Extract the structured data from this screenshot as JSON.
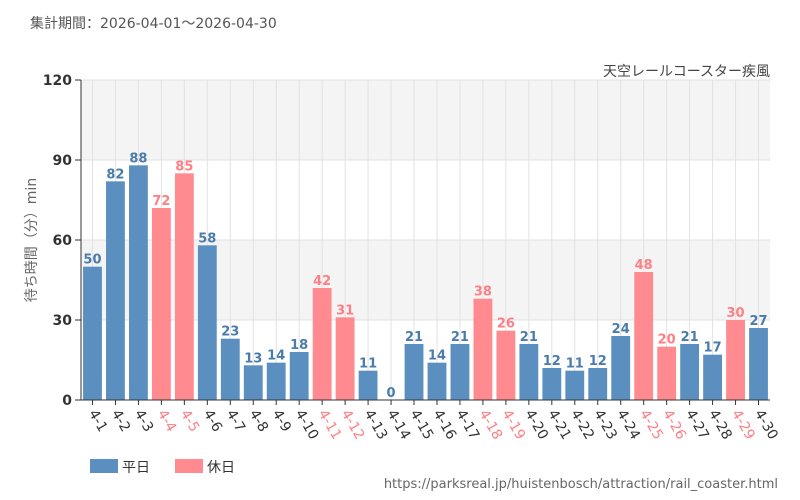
{
  "period_title": "集計期間：2026-04-01～2026-04-30",
  "source_url": "https://parksreal.jp/huistenbosch/attraction/rail_coaster.html",
  "colors": {
    "weekday": "#5b8fbf",
    "holiday": "#ff8a8f",
    "weekday_label": "#4a7cab",
    "holiday_label": "#ff7f86",
    "band": "#f4f4f4",
    "grid": "#e2e2e2",
    "axis": "#333333"
  },
  "legend": [
    {
      "key": "weekday",
      "label": "平日"
    },
    {
      "key": "holiday",
      "label": "休日"
    }
  ],
  "chart_data": {
    "type": "bar",
    "title": "天空レールコースター疾風",
    "ylabel": "待ち時間（分）min",
    "xlabel": "",
    "ylim": [
      0,
      120
    ],
    "yticks": [
      0,
      30,
      60,
      90,
      120
    ],
    "categories": [
      "4-1",
      "4-2",
      "4-3",
      "4-4",
      "4-5",
      "4-6",
      "4-7",
      "4-8",
      "4-9",
      "4-10",
      "4-11",
      "4-12",
      "4-13",
      "4-14",
      "4-15",
      "4-16",
      "4-17",
      "4-18",
      "4-19",
      "4-20",
      "4-21",
      "4-22",
      "4-23",
      "4-24",
      "4-25",
      "4-26",
      "4-27",
      "4-28",
      "4-29",
      "4-30"
    ],
    "values": [
      50,
      82,
      88,
      72,
      85,
      58,
      23,
      13,
      14,
      18,
      42,
      31,
      11,
      0,
      21,
      14,
      21,
      38,
      26,
      21,
      12,
      11,
      12,
      24,
      48,
      20,
      21,
      17,
      30,
      27
    ],
    "day_type": [
      "weekday",
      "weekday",
      "weekday",
      "holiday",
      "holiday",
      "weekday",
      "weekday",
      "weekday",
      "weekday",
      "weekday",
      "holiday",
      "holiday",
      "weekday",
      "weekday",
      "weekday",
      "weekday",
      "weekday",
      "holiday",
      "holiday",
      "weekday",
      "weekday",
      "weekday",
      "weekday",
      "weekday",
      "holiday",
      "holiday",
      "weekday",
      "weekday",
      "holiday",
      "weekday"
    ],
    "legend_position": "bottom-left",
    "grid": true
  }
}
